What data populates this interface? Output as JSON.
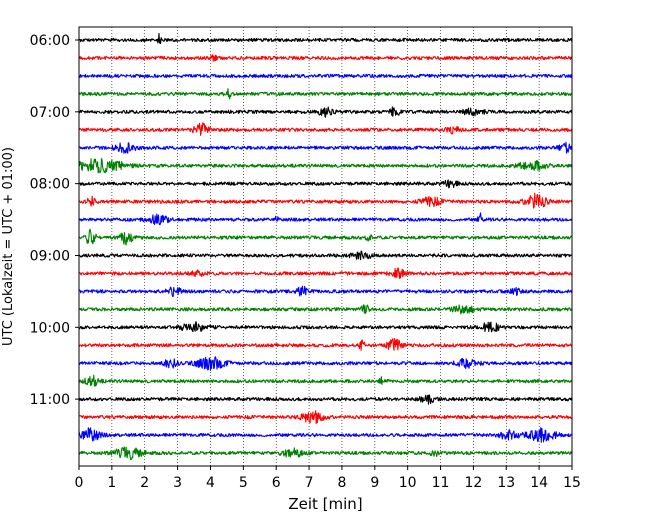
{
  "chart_data": {
    "type": "line",
    "title": "",
    "xlabel": "Zeit  [min]",
    "ylabel": "UTC (Lokalzeit = UTC + 01:00)",
    "xlim": [
      0,
      15
    ],
    "x_ticks": [
      0,
      1,
      2,
      3,
      4,
      5,
      6,
      7,
      8,
      9,
      10,
      11,
      12,
      13,
      14,
      15
    ],
    "y_start": "05:45",
    "y_end": "12:00",
    "trace_interval_minutes": 15,
    "y_tick_labels": [
      "06:00",
      "07:00",
      "08:00",
      "09:00",
      "10:00",
      "11:00"
    ],
    "vertical_grid": true,
    "grid_style": "dotted",
    "trace_colors": [
      "#000000",
      "#ff0000",
      "#0000ff",
      "#008000"
    ],
    "traces": [
      {
        "start": "06:00",
        "color": "#000000",
        "events": [
          [
            2.45,
            6,
            0.05
          ]
        ]
      },
      {
        "start": "06:15",
        "color": "#ff0000",
        "events": [
          [
            4.1,
            2,
            0.1
          ]
        ]
      },
      {
        "start": "06:30",
        "color": "#0000ff",
        "events": []
      },
      {
        "start": "06:45",
        "color": "#008000",
        "events": [
          [
            4.55,
            4,
            0.1
          ]
        ]
      },
      {
        "start": "07:00",
        "color": "#000000",
        "events": [
          [
            7.5,
            4,
            0.2
          ],
          [
            9.6,
            4,
            0.15
          ],
          [
            12.0,
            3,
            0.3
          ]
        ]
      },
      {
        "start": "07:15",
        "color": "#ff0000",
        "events": [
          [
            3.7,
            6,
            0.2
          ],
          [
            11.4,
            3,
            0.2
          ]
        ]
      },
      {
        "start": "07:30",
        "color": "#0000ff",
        "events": [
          [
            1.4,
            4,
            0.3
          ],
          [
            14.8,
            4,
            0.2
          ]
        ]
      },
      {
        "start": "07:45",
        "color": "#008000",
        "events": [
          [
            0.6,
            6,
            0.8
          ],
          [
            13.8,
            4,
            0.4
          ]
        ]
      },
      {
        "start": "08:00",
        "color": "#000000",
        "events": [
          [
            11.3,
            3,
            0.2
          ]
        ]
      },
      {
        "start": "08:15",
        "color": "#ff0000",
        "events": [
          [
            0.4,
            4,
            0.15
          ],
          [
            10.7,
            4,
            0.3
          ],
          [
            13.9,
            7,
            0.3
          ]
        ]
      },
      {
        "start": "08:30",
        "color": "#0000ff",
        "events": [
          [
            2.4,
            4,
            0.3
          ],
          [
            6.0,
            5,
            0.05
          ],
          [
            12.2,
            9,
            0.05
          ]
        ]
      },
      {
        "start": "08:45",
        "color": "#008000",
        "events": [
          [
            0.35,
            7,
            0.15
          ],
          [
            1.45,
            6,
            0.2
          ],
          [
            8.8,
            3,
            0.1
          ]
        ]
      },
      {
        "start": "09:00",
        "color": "#000000",
        "events": [
          [
            8.6,
            3,
            0.3
          ]
        ]
      },
      {
        "start": "09:15",
        "color": "#ff0000",
        "events": [
          [
            3.6,
            3,
            0.2
          ],
          [
            9.7,
            4,
            0.2
          ]
        ]
      },
      {
        "start": "09:30",
        "color": "#0000ff",
        "events": [
          [
            2.9,
            4,
            0.2
          ],
          [
            6.8,
            5,
            0.15
          ],
          [
            13.3,
            3,
            0.2
          ]
        ]
      },
      {
        "start": "09:45",
        "color": "#008000",
        "events": [
          [
            8.7,
            5,
            0.1
          ],
          [
            11.7,
            4,
            0.3
          ]
        ]
      },
      {
        "start": "10:00",
        "color": "#000000",
        "events": [
          [
            3.5,
            4,
            0.4
          ],
          [
            12.5,
            4,
            0.3
          ]
        ]
      },
      {
        "start": "10:15",
        "color": "#ff0000",
        "events": [
          [
            8.6,
            4,
            0.1
          ],
          [
            9.6,
            6,
            0.2
          ]
        ]
      },
      {
        "start": "10:30",
        "color": "#0000ff",
        "events": [
          [
            2.8,
            4,
            0.2
          ],
          [
            4.0,
            6,
            0.4
          ],
          [
            11.8,
            4,
            0.3
          ]
        ]
      },
      {
        "start": "10:45",
        "color": "#008000",
        "events": [
          [
            0.4,
            5,
            0.2
          ],
          [
            9.2,
            4,
            0.05
          ]
        ]
      },
      {
        "start": "11:00",
        "color": "#000000",
        "events": [
          [
            10.6,
            4,
            0.2
          ]
        ]
      },
      {
        "start": "11:15",
        "color": "#ff0000",
        "events": [
          [
            7.1,
            6,
            0.3
          ]
        ]
      },
      {
        "start": "11:30",
        "color": "#0000ff",
        "events": [
          [
            0.3,
            7,
            0.3
          ],
          [
            13.1,
            4,
            0.3
          ],
          [
            14.1,
            6,
            0.4
          ]
        ]
      },
      {
        "start": "11:45",
        "color": "#008000",
        "events": [
          [
            1.5,
            5,
            0.4
          ],
          [
            6.5,
            4,
            0.3
          ],
          [
            10.8,
            4,
            0.1
          ]
        ]
      }
    ]
  }
}
